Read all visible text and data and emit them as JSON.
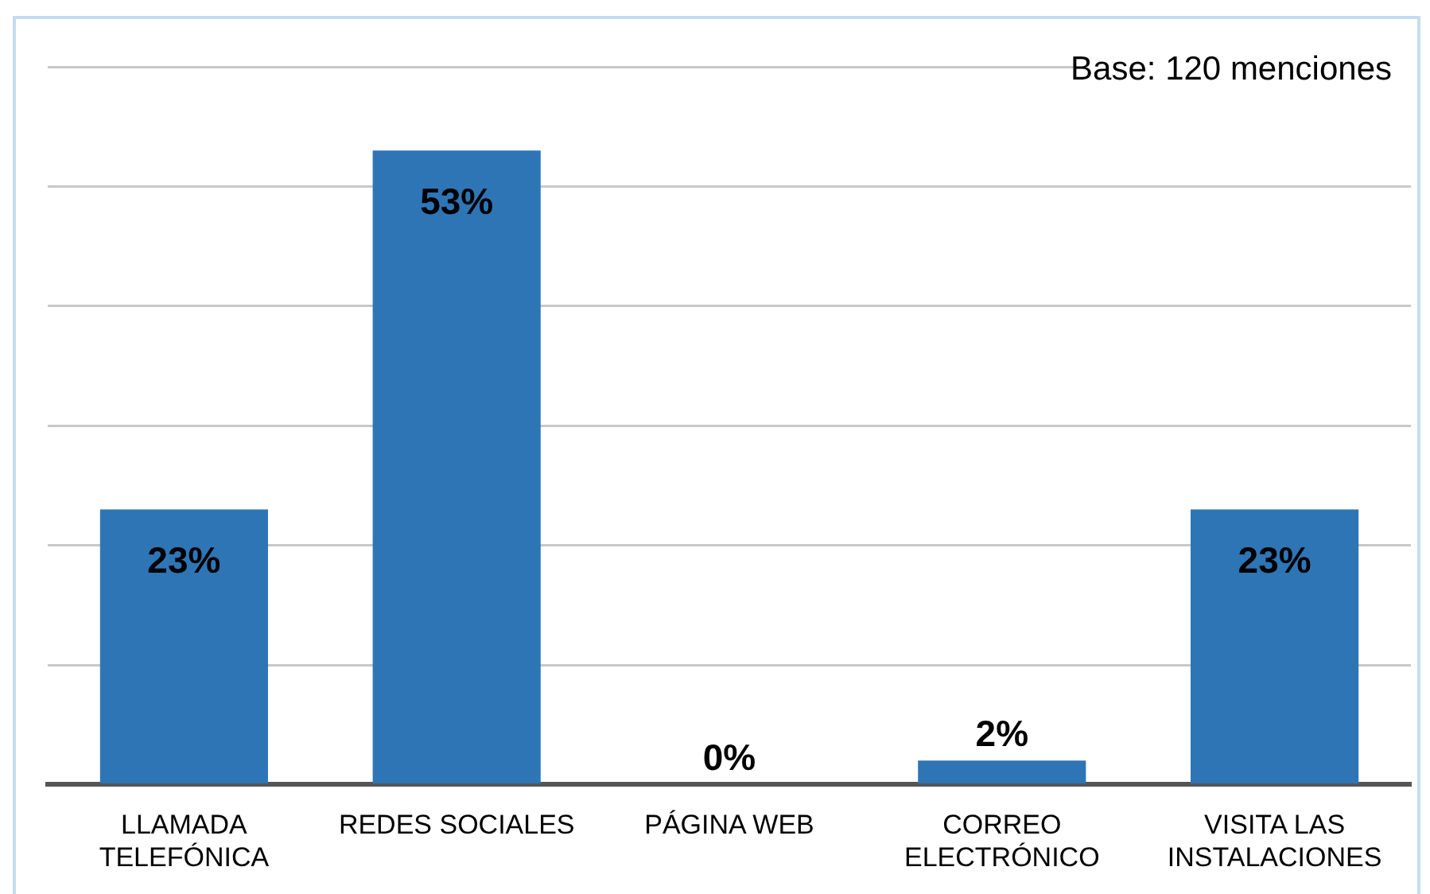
{
  "chart_data": {
    "type": "bar",
    "categories": [
      "LLAMADA TELEFÓNICA",
      "REDES SOCIALES",
      "PÁGINA WEB",
      "CORREO ELECTRÓNICO",
      "VISITA LAS INSTALACIONES"
    ],
    "values": [
      23,
      53,
      0,
      2,
      23
    ],
    "value_labels": [
      "23%",
      "53%",
      "0%",
      "2%",
      "23%"
    ],
    "color": "#2e75b6",
    "tick_labels": "x",
    "grid": "y",
    "annotations": [
      "Base: 120 menciones"
    ]
  }
}
